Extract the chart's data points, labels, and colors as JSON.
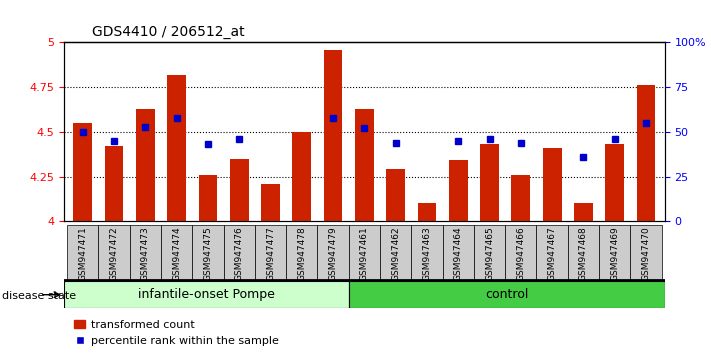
{
  "title": "GDS4410 / 206512_at",
  "samples": [
    "GSM947471",
    "GSM947472",
    "GSM947473",
    "GSM947474",
    "GSM947475",
    "GSM947476",
    "GSM947477",
    "GSM947478",
    "GSM947479",
    "GSM947461",
    "GSM947462",
    "GSM947463",
    "GSM947464",
    "GSM947465",
    "GSM947466",
    "GSM947467",
    "GSM947468",
    "GSM947469",
    "GSM947470"
  ],
  "bar_values": [
    4.55,
    4.42,
    4.63,
    4.82,
    4.26,
    4.35,
    4.21,
    4.5,
    4.96,
    4.63,
    4.29,
    4.1,
    4.34,
    4.43,
    4.26,
    4.41,
    4.1,
    4.43,
    4.76
  ],
  "dot_values_pct": [
    50,
    45,
    53,
    58,
    43,
    46,
    null,
    null,
    58,
    52,
    44,
    null,
    45,
    46,
    44,
    null,
    36,
    46,
    55
  ],
  "ylim_left": [
    4.0,
    5.0
  ],
  "ylim_right": [
    0,
    100
  ],
  "yticks_left": [
    4.0,
    4.25,
    4.5,
    4.75,
    5.0
  ],
  "yticks_right": [
    0,
    25,
    50,
    75,
    100
  ],
  "ytick_labels_right": [
    "0",
    "25",
    "50",
    "75",
    "100%"
  ],
  "group1_count": 9,
  "group2_count": 10,
  "group1_label": "infantile-onset Pompe",
  "group2_label": "control",
  "disease_state_label": "disease state",
  "bar_color": "#CC2200",
  "dot_color": "#0000CC",
  "group1_bg": "#CCFFCC",
  "group2_bg": "#44CC44",
  "xticklabels_bg": "#CCCCCC",
  "legend_bar_label": "transformed count",
  "legend_dot_label": "percentile rank within the sample",
  "title_fontsize": 10,
  "tick_fontsize": 8,
  "label_fontsize": 9
}
